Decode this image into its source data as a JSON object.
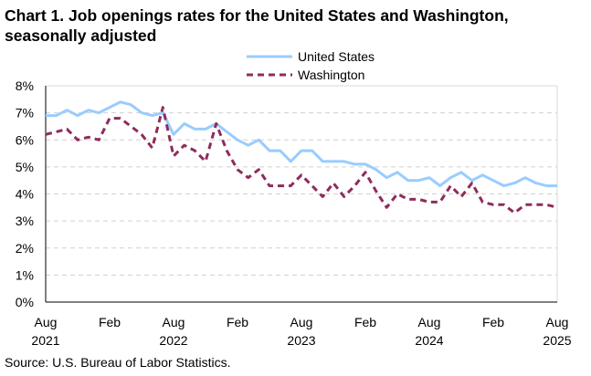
{
  "chart_data": {
    "type": "line",
    "title": "Chart 1. Job openings rates for the United States and Washington, seasonally adjusted",
    "source": "Source: U.S. Bureau of Labor Statistics.",
    "xlabel": "",
    "ylabel": "",
    "ylim": [
      0,
      8
    ],
    "yticks": [
      "0%",
      "1%",
      "2%",
      "3%",
      "4%",
      "5%",
      "6%",
      "7%",
      "8%"
    ],
    "xticks": [
      {
        "month": "Aug",
        "year": "2021"
      },
      {
        "month": "Feb",
        "year": ""
      },
      {
        "month": "Aug",
        "year": "2022"
      },
      {
        "month": "Feb",
        "year": ""
      },
      {
        "month": "Aug",
        "year": "2023"
      },
      {
        "month": "Feb",
        "year": ""
      },
      {
        "month": "Aug",
        "year": "2024"
      },
      {
        "month": "Feb",
        "year": ""
      },
      {
        "month": "Aug",
        "year": "2025"
      }
    ],
    "x_range": [
      "Aug 2021",
      "Aug 2025"
    ],
    "grid": "horizontal dashed",
    "legend": "top-center",
    "series": [
      {
        "name": "United States",
        "color": "#99ccff",
        "style": "solid",
        "values": [
          6.9,
          6.9,
          7.1,
          6.9,
          7.1,
          7.0,
          7.2,
          7.4,
          7.3,
          7.0,
          6.9,
          7.0,
          6.2,
          6.6,
          6.4,
          6.4,
          6.6,
          6.3,
          6.0,
          5.8,
          6.0,
          5.6,
          5.6,
          5.2,
          5.6,
          5.6,
          5.2,
          5.2,
          5.2,
          5.1,
          5.1,
          4.9,
          4.6,
          4.8,
          4.5,
          4.5,
          4.6,
          4.3,
          4.6,
          4.8,
          4.5,
          4.7,
          4.5,
          4.3,
          4.4,
          4.6,
          4.4,
          4.3,
          4.3
        ]
      },
      {
        "name": "Washington",
        "color": "#8e2c5c",
        "style": "dashed",
        "values": [
          6.2,
          6.3,
          6.4,
          6.0,
          6.1,
          6.0,
          6.8,
          6.8,
          6.5,
          6.2,
          5.7,
          7.2,
          5.4,
          5.8,
          5.6,
          5.2,
          6.6,
          5.6,
          4.9,
          4.6,
          4.9,
          4.3,
          4.3,
          4.3,
          4.7,
          4.3,
          3.9,
          4.4,
          3.9,
          4.3,
          4.8,
          4.1,
          3.5,
          4.0,
          3.8,
          3.8,
          3.7,
          3.7,
          4.3,
          3.9,
          4.4,
          3.7,
          3.6,
          3.6,
          3.3,
          3.6,
          3.6,
          3.6,
          3.5
        ]
      }
    ]
  }
}
